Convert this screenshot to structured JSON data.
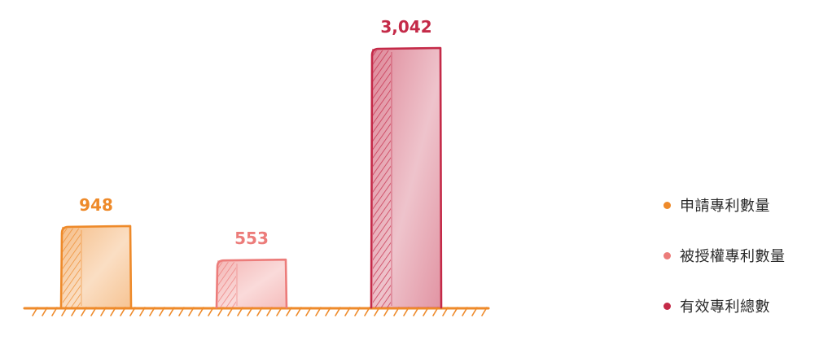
{
  "chart_data": {
    "type": "bar",
    "title": "",
    "xlabel": "",
    "ylabel": "",
    "categories": [
      "申請專利數量",
      "被授權專利數量",
      "有效專利總數"
    ],
    "values": [
      948,
      553,
      3042
    ],
    "value_labels": [
      "948",
      "553",
      "3,042"
    ],
    "colors": [
      "#ee8a2a",
      "#ec7c7a",
      "#c42a48"
    ],
    "ylim": [
      0,
      3042
    ],
    "grid": false,
    "legend": {
      "position": "right",
      "items": [
        {
          "label": "申請專利數量",
          "color": "#ee8a2a"
        },
        {
          "label": "被授權專利數量",
          "color": "#ec7c7a"
        },
        {
          "label": "有效專利總數",
          "color": "#c42a48"
        }
      ]
    }
  }
}
